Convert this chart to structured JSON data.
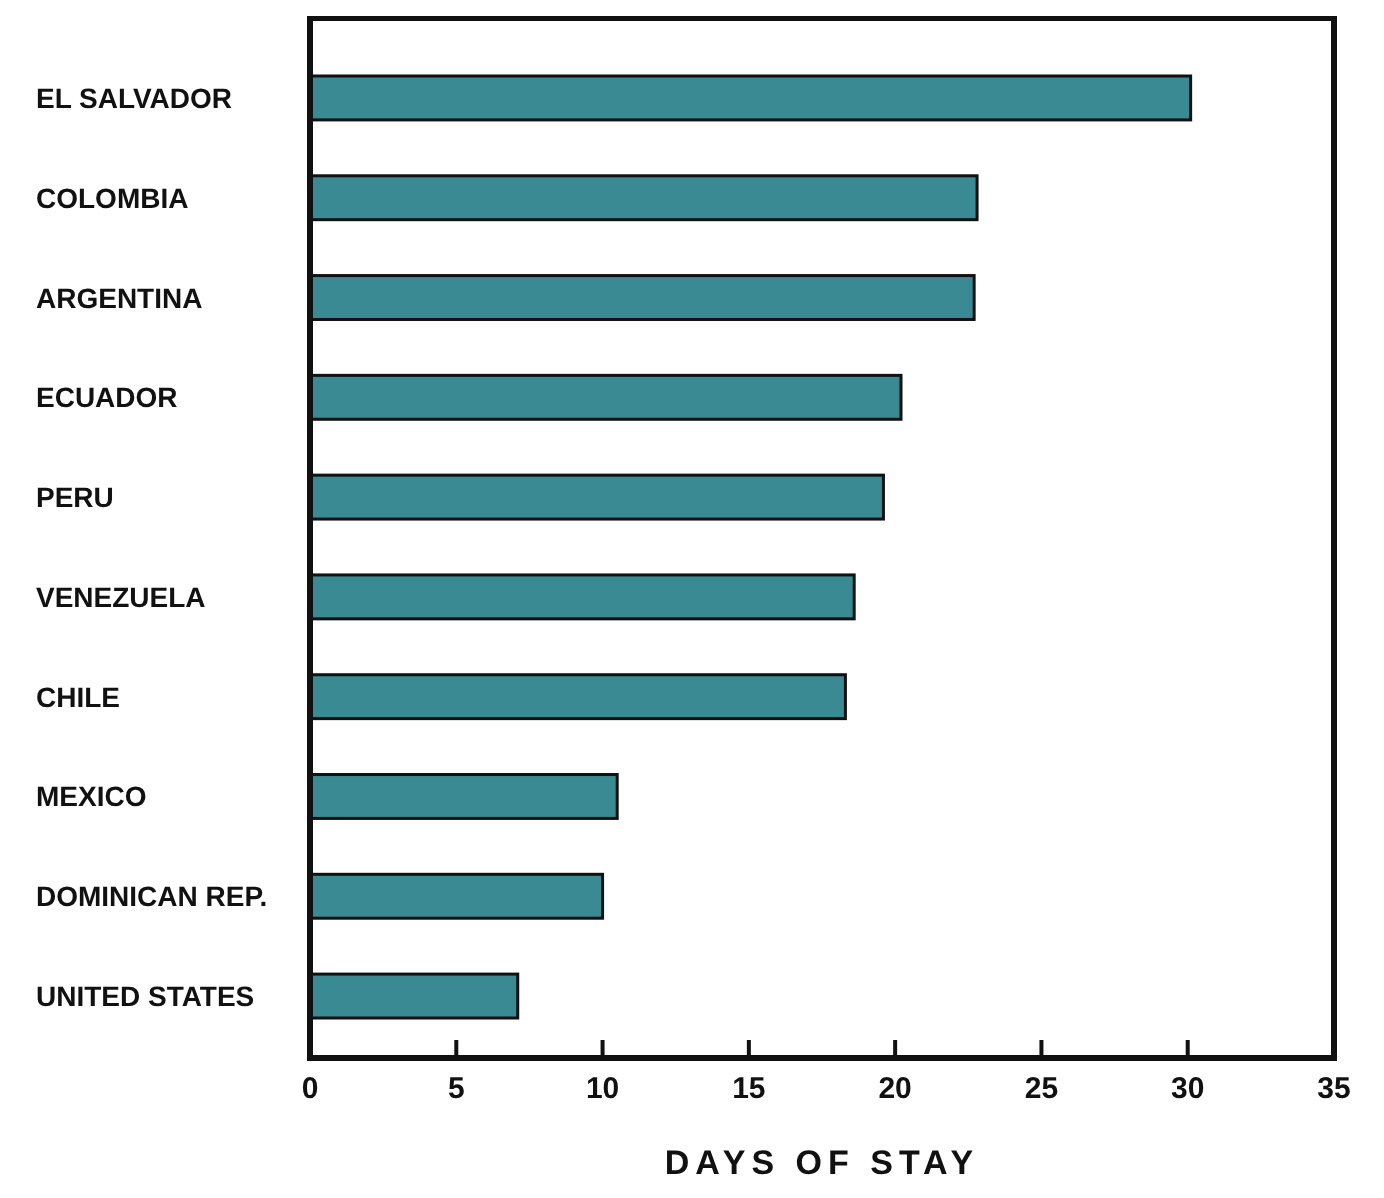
{
  "chart_data": {
    "type": "bar",
    "orientation": "horizontal",
    "xlabel": "DAYS OF STAY",
    "categories": [
      "EL SALVADOR",
      "COLOMBIA",
      "ARGENTINA",
      "ECUADOR",
      "PERU",
      "VENEZUELA",
      "CHILE",
      "MEXICO",
      "DOMINICAN REP.",
      "UNITED STATES"
    ],
    "values": [
      30.1,
      22.8,
      22.7,
      20.2,
      19.6,
      18.6,
      18.3,
      10.5,
      10.0,
      7.1
    ],
    "color": "#3a8a94",
    "xlim": [
      0,
      35
    ],
    "xticks": [
      0,
      5,
      10,
      15,
      20,
      25,
      30,
      35
    ],
    "grid": false
  }
}
